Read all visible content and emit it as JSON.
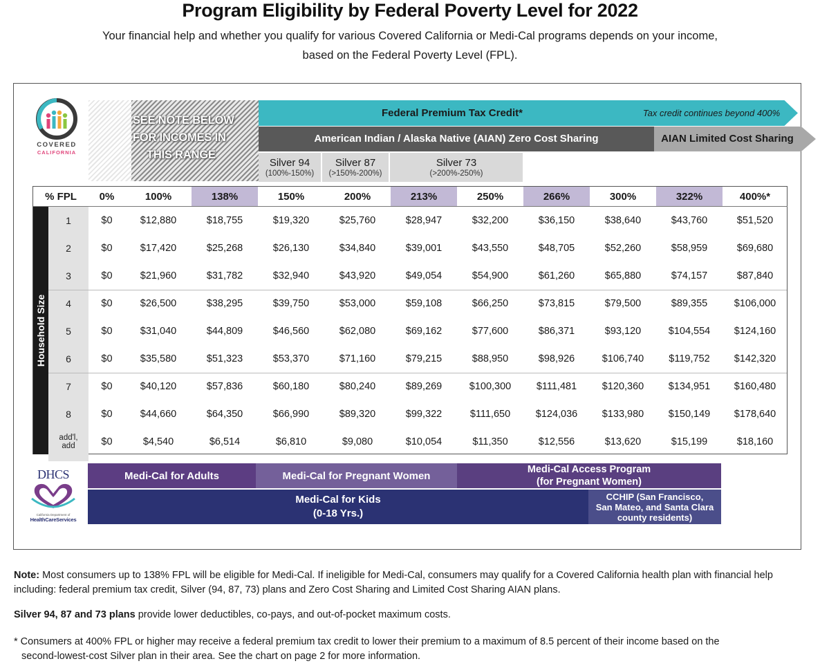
{
  "title": "Program Eligibility by Federal Poverty Level for 2022",
  "subtitle_line1": "Your financial help and whether you qualify for various Covered California or Medi-Cal programs depends on your income,",
  "subtitle_line2": "based on the Federal Poverty Level (FPL).",
  "logo_cc": {
    "line1": "COVERED",
    "line2": "CALIFORNIA"
  },
  "see_note": [
    "SEE NOTE BELOW",
    "FOR INCOMES IN",
    "THIS RANGE"
  ],
  "programs": {
    "ptc_label": "Federal Premium Tax Credit*",
    "ptc_note": "Tax credit continues beyond 400%",
    "aian_zero": "American Indian / Alaska Native (AIAN) Zero Cost Sharing",
    "aian_limited": "AIAN Limited Cost Sharing",
    "silver": [
      {
        "name": "Silver 94",
        "range": "(100%-150%)"
      },
      {
        "name": "Silver 87",
        "range": "(>150%-200%)"
      },
      {
        "name": "Silver 73",
        "range": "(>200%-250%)"
      }
    ]
  },
  "table": {
    "corner": "% FPL",
    "side_label": "Household Size",
    "headers": [
      "0%",
      "100%",
      "138%",
      "150%",
      "200%",
      "213%",
      "250%",
      "266%",
      "300%",
      "322%",
      "400%*"
    ],
    "highlight_cols": [
      2,
      5,
      7,
      9
    ],
    "rows": [
      {
        "label": "1",
        "values": [
          "$0",
          "$12,880",
          "$18,755",
          "$19,320",
          "$25,760",
          "$28,947",
          "$32,200",
          "$36,150",
          "$38,640",
          "$43,760",
          "$51,520"
        ]
      },
      {
        "label": "2",
        "values": [
          "$0",
          "$17,420",
          "$25,268",
          "$26,130",
          "$34,840",
          "$39,001",
          "$43,550",
          "$48,705",
          "$52,260",
          "$58,959",
          "$69,680"
        ]
      },
      {
        "label": "3",
        "values": [
          "$0",
          "$21,960",
          "$31,782",
          "$32,940",
          "$43,920",
          "$49,054",
          "$54,900",
          "$61,260",
          "$65,880",
          "$74,157",
          "$87,840"
        ]
      },
      {
        "label": "4",
        "values": [
          "$0",
          "$26,500",
          "$38,295",
          "$39,750",
          "$53,000",
          "$59,108",
          "$66,250",
          "$73,815",
          "$79,500",
          "$89,355",
          "$106,000"
        ]
      },
      {
        "label": "5",
        "values": [
          "$0",
          "$31,040",
          "$44,809",
          "$46,560",
          "$62,080",
          "$69,162",
          "$77,600",
          "$86,371",
          "$93,120",
          "$104,554",
          "$124,160"
        ]
      },
      {
        "label": "6",
        "values": [
          "$0",
          "$35,580",
          "$51,323",
          "$53,370",
          "$71,160",
          "$79,215",
          "$88,950",
          "$98,926",
          "$106,740",
          "$119,752",
          "$142,320"
        ]
      },
      {
        "label": "7",
        "values": [
          "$0",
          "$40,120",
          "$57,836",
          "$60,180",
          "$80,240",
          "$89,269",
          "$100,300",
          "$111,481",
          "$120,360",
          "$134,951",
          "$160,480"
        ]
      },
      {
        "label": "8",
        "values": [
          "$0",
          "$44,660",
          "$64,350",
          "$66,990",
          "$89,320",
          "$99,322",
          "$111,650",
          "$124,036",
          "$133,980",
          "$150,149",
          "$178,640"
        ]
      },
      {
        "label_line1": "add'l,",
        "label_line2": "add",
        "values": [
          "$0",
          "$4,540",
          "$6,514",
          "$6,810",
          "$9,080",
          "$10,054",
          "$11,350",
          "$12,556",
          "$13,620",
          "$15,199",
          "$18,160"
        ]
      }
    ]
  },
  "dhcs_logo": {
    "name": "DHCS",
    "line1": "California Department of",
    "line2": "HealthCareServices"
  },
  "medical": {
    "adults": "Medi-Cal for Adults",
    "pregnant": "Medi-Cal for Pregnant Women",
    "access_line1": "Medi-Cal Access Program",
    "access_line2": "(for Pregnant Women)",
    "kids_line1": "Medi-Cal for Kids",
    "kids_line2": "(0-18 Yrs.)",
    "cchip_line1": "CCHIP (San Francisco,",
    "cchip_line2": "San Mateo, and Santa Clara",
    "cchip_line3": "county residents)"
  },
  "notes": {
    "note_label": "Note:",
    "note_text": " Most consumers up to 138% FPL will be eligible for Medi-Cal. If ineligible for Medi-Cal, consumers may qualify for a Covered California health plan with financial help including: federal premium tax credit, Silver (94, 87, 73) plans and Zero Cost Sharing and Limited Cost Sharing AIAN plans.",
    "silver_label": "Silver 94, 87 and 73 plans",
    "silver_text": " provide lower deductibles, co-pays, and out-of-pocket maximum costs.",
    "star_line1": "* Consumers at 400% FPL or higher may receive a federal premium tax credit to lower their premium to a maximum of 8.5 percent of their income based on the",
    "star_line2": "second-lowest-cost Silver plan in their area. See the chart on page 2 for more information."
  },
  "colors": {
    "teal": "#3cb8c2",
    "dark_gray": "#595959",
    "light_gray": "#a8a8a8",
    "highlight": "#c2b9d6",
    "medi_purple": "#5c3d82",
    "medi_purple_light": "#74609a",
    "kids_navy": "#2b3273",
    "cchip": "#4b4e8a"
  }
}
